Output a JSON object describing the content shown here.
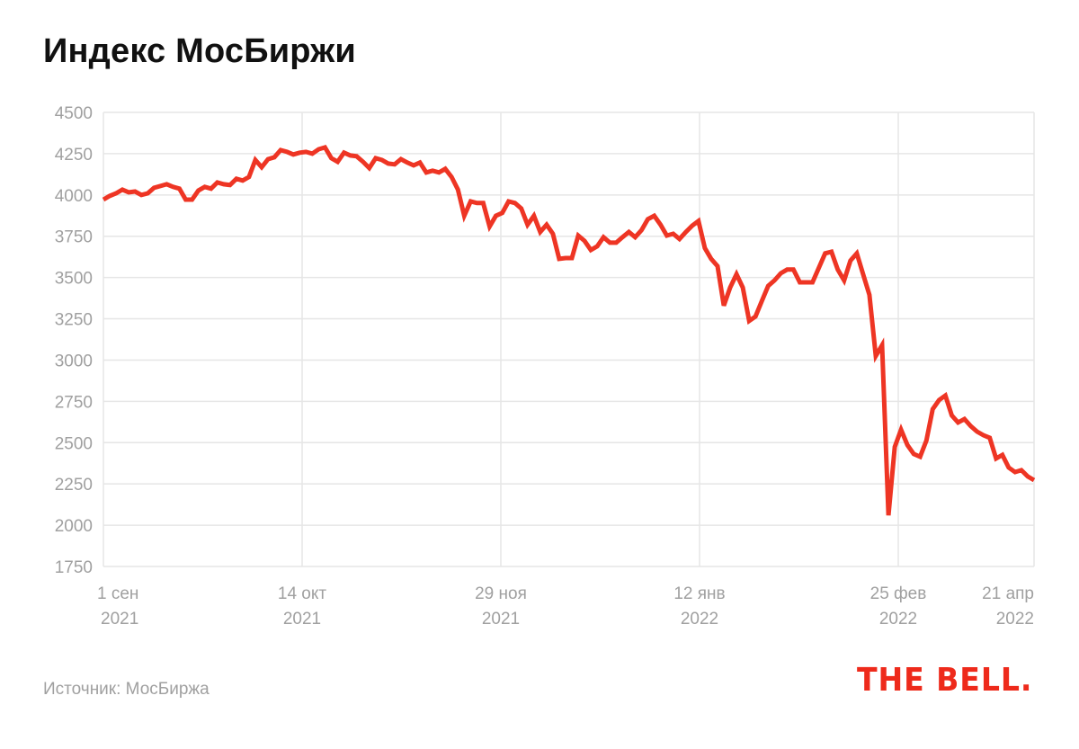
{
  "title": "Индекс МосБиржи",
  "source": "Источник: МосБиржа",
  "logo": "THE BELL.",
  "colors": {
    "line": "#ee3524",
    "grid": "#e6e6e6",
    "tick_text": "#a0a0a0",
    "logo": "#ee2a1b"
  },
  "chart_data": {
    "type": "line",
    "title": "Индекс МосБиржи",
    "xlabel": "",
    "ylabel": "",
    "ylim": [
      1750,
      4500
    ],
    "yticks": [
      1750,
      2000,
      2250,
      2500,
      2750,
      3000,
      3250,
      3500,
      3750,
      4000,
      4250,
      4500
    ],
    "xticks": [
      {
        "line1": "1 сен",
        "line2": "2021"
      },
      {
        "line1": "14 окт",
        "line2": "2021"
      },
      {
        "line1": "29 ноя",
        "line2": "2021"
      },
      {
        "line1": "12 янв",
        "line2": "2022"
      },
      {
        "line1": "25 фев",
        "line2": "2022"
      },
      {
        "line1": "21 апр",
        "line2": "2022"
      }
    ],
    "grid": true,
    "values": [
      3972,
      3994,
      4010,
      4032,
      4016,
      4021,
      4000,
      4010,
      4043,
      4054,
      4065,
      4049,
      4038,
      3972,
      3972,
      4027,
      4049,
      4038,
      4076,
      4065,
      4060,
      4098,
      4087,
      4109,
      4212,
      4168,
      4217,
      4228,
      4272,
      4261,
      4245,
      4256,
      4261,
      4250,
      4277,
      4288,
      4223,
      4201,
      4256,
      4239,
      4234,
      4201,
      4163,
      4223,
      4212,
      4190,
      4185,
      4217,
      4196,
      4179,
      4196,
      4136,
      4147,
      4136,
      4158,
      4109,
      4032,
      3874,
      3961,
      3951,
      3951,
      3809,
      3874,
      3891,
      3961,
      3951,
      3918,
      3820,
      3874,
      3776,
      3820,
      3765,
      3613,
      3618,
      3618,
      3754,
      3722,
      3667,
      3689,
      3744,
      3711,
      3711,
      3744,
      3776,
      3744,
      3787,
      3853,
      3874,
      3820,
      3754,
      3765,
      3733,
      3776,
      3814,
      3842,
      3678,
      3613,
      3569,
      3330,
      3439,
      3520,
      3439,
      3237,
      3264,
      3357,
      3449,
      3482,
      3526,
      3548,
      3548,
      3471,
      3471,
      3471,
      3558,
      3646,
      3656,
      3548,
      3482,
      3602,
      3646,
      3520,
      3395,
      3025,
      3090,
      2060,
      2474,
      2578,
      2485,
      2431,
      2415,
      2513,
      2703,
      2758,
      2785,
      2665,
      2622,
      2643,
      2600,
      2567,
      2545,
      2529,
      2404,
      2425,
      2349,
      2322,
      2333,
      2295,
      2273
    ]
  }
}
